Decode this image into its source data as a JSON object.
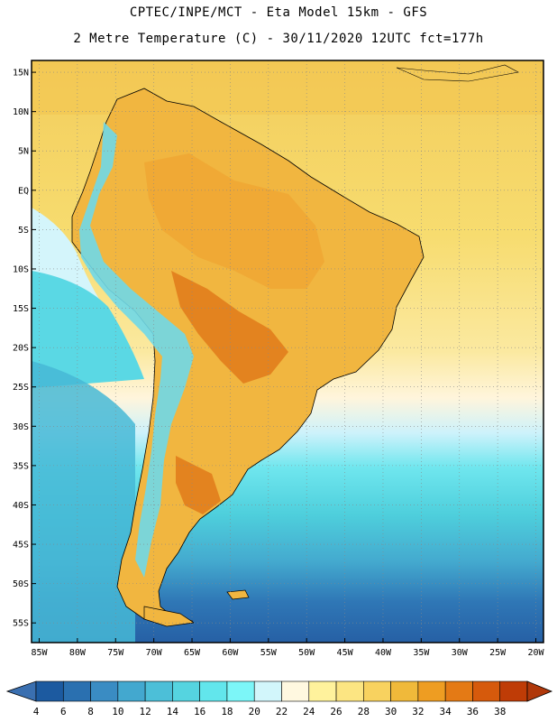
{
  "header": {
    "line1": "CPTEC/INPE/MCT -  Eta Model 15km - GFS",
    "line2": "2 Metre Temperature (C) - 30/11/2020 12UTC fct=177h"
  },
  "map": {
    "lat_labels": [
      "15N",
      "10N",
      "5N",
      "EQ",
      "5S",
      "10S",
      "15S",
      "20S",
      "25S",
      "30S",
      "35S",
      "40S",
      "45S",
      "50S",
      "55S"
    ],
    "lat_values": [
      15,
      10,
      5,
      0,
      -5,
      -10,
      -15,
      -20,
      -25,
      -30,
      -35,
      -40,
      -45,
      -50,
      -55
    ],
    "lon_labels": [
      "85W",
      "80W",
      "75W",
      "70W",
      "65W",
      "60W",
      "55W",
      "50W",
      "45W",
      "40W",
      "35W",
      "30W",
      "25W",
      "20W"
    ],
    "lon_values": [
      -85,
      -80,
      -75,
      -70,
      -65,
      -60,
      -55,
      -50,
      -45,
      -40,
      -35,
      -30,
      -25,
      -20
    ],
    "lat_range": [
      -57.5,
      16.5
    ],
    "lon_range": [
      -86,
      -19
    ]
  },
  "colorbar": {
    "labels": [
      "4",
      "6",
      "8",
      "10",
      "12",
      "14",
      "16",
      "18",
      "20",
      "22",
      "24",
      "26",
      "28",
      "30",
      "32",
      "34",
      "36",
      "38"
    ],
    "colors": [
      "#1c5aa0",
      "#2a70b0",
      "#3a8cc3",
      "#43a8cf",
      "#4cbfd8",
      "#55d4e0",
      "#62e6ec",
      "#7cf6f8",
      "#d2f6fb",
      "#fff8e0",
      "#fff29c",
      "#fce582",
      "#f8d25f",
      "#f0b93a",
      "#ee9d22",
      "#e47a15",
      "#d65a0c",
      "#bf3c06"
    ],
    "low_color": "#3a6fb0",
    "high_color": "#b0380a"
  }
}
